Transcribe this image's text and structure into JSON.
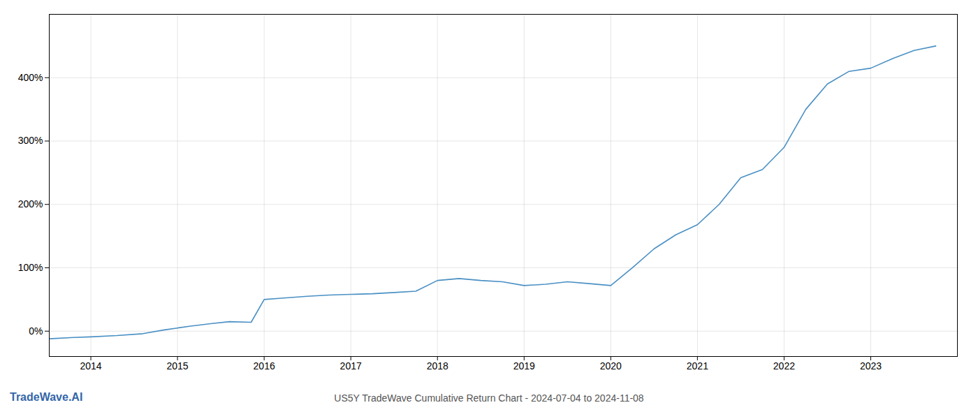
{
  "chart_data": {
    "type": "line",
    "title": "US5Y TradeWave Cumulative Return Chart - 2024-07-04 to 2024-11-08",
    "annotations": [
      "TradeWave.AI"
    ],
    "x": [
      2013.52,
      2013.8,
      2014.0,
      2014.3,
      2014.6,
      2014.85,
      2015.0,
      2015.15,
      2015.4,
      2015.6,
      2015.85,
      2016.0,
      2016.2,
      2016.5,
      2016.75,
      2017.0,
      2017.25,
      2017.5,
      2017.75,
      2018.0,
      2018.25,
      2018.5,
      2018.75,
      2019.0,
      2019.25,
      2019.5,
      2019.75,
      2020.0,
      2020.25,
      2020.5,
      2020.75,
      2021.0,
      2021.25,
      2021.5,
      2021.75,
      2022.0,
      2022.25,
      2022.5,
      2022.75,
      2023.0,
      2023.25,
      2023.5,
      2023.75
    ],
    "values": [
      -12,
      -10,
      -9,
      -7,
      -4,
      2,
      5,
      8,
      12,
      15,
      14,
      50,
      52,
      55,
      57,
      58,
      59,
      61,
      63,
      80,
      83,
      80,
      78,
      72,
      74,
      78,
      75,
      72,
      100,
      130,
      152,
      168,
      200,
      242,
      255,
      290,
      350,
      390,
      410,
      415,
      430,
      443,
      450
    ],
    "color": "#4a90c4",
    "xlim": [
      2013.52,
      2024.0
    ],
    "xticks": [
      2014,
      2015,
      2016,
      2017,
      2018,
      2019,
      2020,
      2021,
      2022,
      2023
    ],
    "ylim": [
      -40,
      500
    ],
    "yticks": [
      {
        "value": 0,
        "label": "0%"
      },
      {
        "value": 100,
        "label": "100%"
      },
      {
        "value": 200,
        "label": "200%"
      },
      {
        "value": 300,
        "label": "300%"
      },
      {
        "value": 400,
        "label": "400%"
      }
    ],
    "grid": true
  }
}
